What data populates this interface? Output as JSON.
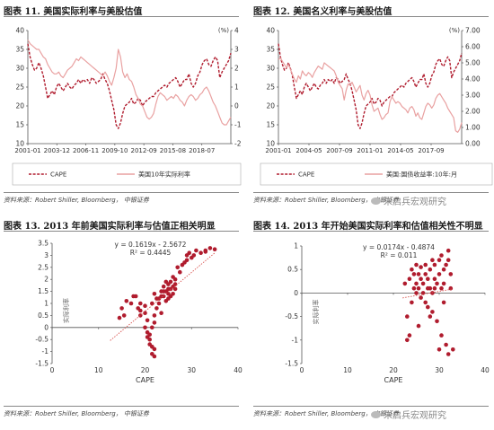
{
  "panels": {
    "p11": {
      "title": "图表 11. 美国实际利率与美股估值",
      "source": "资料来源：Robert Shiller, Bloomberg， 中银证券"
    },
    "p12": {
      "title": "图表 12. 美国名义利率与美股估值",
      "source": "资料来源：Robert Shiller, Bloomberg， 中银证券",
      "watermark": "朱启兵宏观研究"
    },
    "p13": {
      "title": "图表 13. 2013 年前美国实际利率与估值正相关明显",
      "source": "资料来源：Robert Shiller, Bloomberg， 中银证券"
    },
    "p14": {
      "title": "图表 14. 2013 年开始美国实际利率和估值相关性不明显",
      "source": "资料来源：Robert Shiller, Bloomberg， 中银证券",
      "watermark": "朱启兵宏观研究"
    }
  },
  "colors": {
    "cape": "#b01c2e",
    "rate": "#e9a1a1",
    "trend": "#d9534f",
    "axis": "#555555"
  },
  "chart_data": [
    {
      "id": "c11",
      "type": "line",
      "x_ticks": [
        "2001-01",
        "2003-12",
        "2006-11",
        "2009-10",
        "2012-09",
        "2015-08",
        "2018-07"
      ],
      "ylim_left": [
        10,
        40
      ],
      "yticks_left": [
        "10",
        "15",
        "20",
        "25",
        "30",
        "35",
        "40"
      ],
      "ylim_right": [
        -2,
        4
      ],
      "yticks_right": [
        "-2",
        "-1",
        "0",
        "1",
        "2",
        "3",
        "4"
      ],
      "unit_right": "(%)",
      "series": [
        {
          "name": "CAPE",
          "axis": "left",
          "style": "dashed",
          "values": [
            36.5,
            33,
            31,
            29.5,
            30,
            31.5,
            30,
            28,
            25,
            22,
            23,
            24,
            23,
            25,
            26,
            25,
            24,
            25,
            26,
            25,
            24.5,
            25.5,
            26,
            27,
            26,
            27,
            26.5,
            27,
            26,
            27.5,
            27,
            26,
            26.5,
            27,
            28.5,
            27,
            26,
            24,
            21.5,
            19,
            15,
            14,
            15.5,
            18,
            20,
            20.5,
            21,
            22,
            20.5,
            21,
            22,
            21.5,
            20,
            21,
            21.5,
            22,
            22.5,
            22.5,
            23.5,
            24,
            24.5,
            25,
            25.5,
            25,
            26,
            26.5,
            27,
            27.5,
            26.5,
            25,
            26,
            27,
            27,
            28.5,
            26,
            25,
            26,
            28,
            29,
            31,
            32,
            32.5,
            31,
            30.5,
            32,
            33,
            32,
            27.5,
            29,
            30,
            31,
            32,
            34
          ]
        },
        {
          "name": "美国10年实际利率",
          "axis": "right",
          "style": "solid",
          "values": [
            3.5,
            3.3,
            3.2,
            3.1,
            3.0,
            3.0,
            2.8,
            2.6,
            2.5,
            2.2,
            2.0,
            1.8,
            1.7,
            1.7,
            1.8,
            1.6,
            1.5,
            1.7,
            1.9,
            2.0,
            2.1,
            2.3,
            2.5,
            2.4,
            2.6,
            2.5,
            2.4,
            2.3,
            2.2,
            2.1,
            2.0,
            1.9,
            1.8,
            1.7,
            1.6,
            1.8,
            1.6,
            1.3,
            1.1,
            1.5,
            2.0,
            3.0,
            2.6,
            1.8,
            1.5,
            1.7,
            1.4,
            1.3,
            1.0,
            0.6,
            0.4,
            0.1,
            0.0,
            -0.3,
            -0.6,
            -0.7,
            -0.6,
            -0.4,
            0.1,
            0.5,
            0.7,
            0.6,
            0.5,
            0.3,
            0.4,
            0.5,
            0.4,
            0.6,
            0.5,
            0.3,
            0.2,
            0.0,
            0.3,
            0.5,
            0.6,
            0.5,
            0.3,
            0.4,
            0.6,
            0.7,
            0.9,
            1.0,
            0.8,
            0.5,
            0.2,
            0.0,
            -0.3,
            -0.6,
            -0.9,
            -1.0,
            -1.0,
            -0.8,
            -0.6
          ]
        }
      ]
    },
    {
      "id": "c12",
      "type": "line",
      "x_ticks": [
        "2001-01",
        "2004-05",
        "2007-09",
        "2011-01",
        "2014-05",
        "2017-09"
      ],
      "ylim_left": [
        10,
        40
      ],
      "yticks_left": [
        "10",
        "15",
        "20",
        "25",
        "30",
        "35",
        "40"
      ],
      "ylim_right": [
        0,
        7
      ],
      "yticks_right": [
        "0.00",
        "1.00",
        "2.00",
        "3.00",
        "4.00",
        "5.00",
        "6.00",
        "7.00"
      ],
      "unit_right": "(%)",
      "series": [
        {
          "name": "CAPE",
          "axis": "left",
          "style": "dashed",
          "values": [
            36.5,
            33,
            31,
            29.5,
            30,
            31.5,
            30,
            28,
            25,
            22,
            23,
            24,
            23,
            25,
            26,
            25,
            24,
            25,
            26,
            25,
            24.5,
            25.5,
            26,
            27,
            26,
            27,
            26.5,
            27,
            26,
            27.5,
            27,
            26,
            26.5,
            27,
            28.5,
            27,
            26,
            24,
            21.5,
            19,
            15,
            14,
            15.5,
            18,
            20,
            20.5,
            21,
            22,
            20.5,
            21,
            22,
            21.5,
            20,
            21,
            21.5,
            22,
            22.5,
            22.5,
            23.5,
            24,
            24.5,
            25,
            25.5,
            25,
            26,
            26.5,
            27,
            27.5,
            26.5,
            25,
            26,
            27,
            27,
            28.5,
            26,
            25,
            26,
            28,
            29,
            31,
            32,
            32.5,
            31,
            30.5,
            32,
            33,
            32,
            27.5,
            29,
            30,
            31,
            32,
            34
          ]
        },
        {
          "name": "美国:国债收益率:10年:月",
          "axis": "right",
          "style": "solid",
          "values": [
            5.2,
            5.3,
            5.1,
            4.9,
            4.7,
            4.9,
            4.6,
            4.3,
            4.0,
            3.8,
            4.2,
            4.0,
            4.5,
            4.3,
            4.2,
            4.4,
            4.3,
            4.1,
            4.4,
            4.6,
            4.8,
            4.7,
            4.6,
            5.0,
            4.9,
            4.8,
            4.7,
            4.6,
            4.5,
            4.2,
            3.8,
            3.6,
            3.4,
            2.7,
            3.3,
            3.7,
            3.6,
            3.8,
            3.5,
            3.2,
            3.4,
            3.6,
            3.0,
            2.7,
            3.1,
            3.3,
            3.0,
            2.4,
            2.0,
            2.1,
            2.2,
            1.8,
            1.5,
            1.6,
            1.8,
            1.9,
            2.6,
            2.9,
            2.7,
            2.5,
            2.6,
            2.5,
            2.3,
            2.2,
            2.1,
            1.9,
            2.2,
            2.3,
            2.1,
            1.7,
            1.9,
            1.6,
            1.5,
            1.9,
            2.3,
            2.5,
            2.4,
            2.2,
            2.4,
            2.8,
            3.0,
            3.1,
            2.9,
            2.7,
            2.5,
            2.2,
            2.0,
            1.8,
            1.6,
            0.8,
            0.7,
            0.9,
            1.3
          ]
        }
      ]
    },
    {
      "id": "c13",
      "type": "scatter",
      "xlabel": "CAPE",
      "ylabel": "实际利率",
      "xlim": [
        0,
        40
      ],
      "ylim": [
        -1.5,
        3.5
      ],
      "xticks": [
        "0",
        "10",
        "20",
        "30",
        "40"
      ],
      "yticks": [
        "-1.5",
        "-1",
        "-0.5",
        "0",
        "0.5",
        "1",
        "1.5",
        "2",
        "2.5",
        "3",
        "3.5"
      ],
      "equation": "y = 0.1619x - 2.5672",
      "r2": "R² = 0.4445",
      "trend": {
        "slope": 0.1619,
        "intercept": -2.5672,
        "x_range": [
          12.5,
          35
        ]
      },
      "points": [
        [
          14.5,
          0.4
        ],
        [
          15.5,
          0.5
        ],
        [
          15,
          0.8
        ],
        [
          16,
          1.1
        ],
        [
          17.5,
          1.3
        ],
        [
          18,
          1.3
        ],
        [
          19,
          1.0
        ],
        [
          17,
          1.0
        ],
        [
          18.5,
          0.8
        ],
        [
          19,
          0.5
        ],
        [
          19,
          0.7
        ],
        [
          20,
          0.6
        ],
        [
          20,
          0.9
        ],
        [
          20.5,
          0.3
        ],
        [
          20,
          0.0
        ],
        [
          20.5,
          -0.2
        ],
        [
          20.5,
          -0.4
        ],
        [
          21,
          -0.7
        ],
        [
          21,
          -0.5
        ],
        [
          21.5,
          -0.8
        ],
        [
          21.5,
          -1.1
        ],
        [
          22,
          -0.9
        ],
        [
          22,
          -1.2
        ],
        [
          21,
          -0.3
        ],
        [
          21.5,
          0.0
        ],
        [
          22,
          0.2
        ],
        [
          22,
          0.5
        ],
        [
          22.5,
          0.8
        ],
        [
          21.5,
          1.0
        ],
        [
          22,
          1.4
        ],
        [
          22.5,
          1.2
        ],
        [
          23,
          1.0
        ],
        [
          23,
          1.2
        ],
        [
          23.5,
          0.6
        ],
        [
          23.5,
          1.5
        ],
        [
          24,
          1.3
        ],
        [
          24,
          1.7
        ],
        [
          24.5,
          1.1
        ],
        [
          24.5,
          1.5
        ],
        [
          25,
          1.2
        ],
        [
          25,
          1.8
        ],
        [
          25.5,
          1.6
        ],
        [
          25.5,
          1.9
        ],
        [
          26,
          1.7
        ],
        [
          26,
          1.4
        ],
        [
          26.5,
          2.0
        ],
        [
          26.5,
          1.6
        ],
        [
          25,
          1.4
        ],
        [
          24.5,
          1.9
        ],
        [
          25.5,
          1.3
        ],
        [
          26,
          2.1
        ],
        [
          26.5,
          1.8
        ],
        [
          25,
          1.6
        ],
        [
          24,
          1.5
        ],
        [
          23.5,
          1.3
        ],
        [
          27,
          2.5
        ],
        [
          27.5,
          2.3
        ],
        [
          28,
          2.6
        ],
        [
          28.5,
          2.7
        ],
        [
          29,
          2.8
        ],
        [
          29.5,
          3.1
        ],
        [
          30,
          2.9
        ],
        [
          31,
          3.2
        ],
        [
          32,
          3.1
        ],
        [
          33,
          3.2
        ],
        [
          34,
          3.3
        ],
        [
          35,
          3.25
        ],
        [
          29,
          3.0
        ],
        [
          30.5,
          3.0
        ],
        [
          33,
          3.15
        ]
      ]
    },
    {
      "id": "c14",
      "type": "scatter",
      "xlabel": "CAPE",
      "ylabel": "实际利率",
      "xlim": [
        0,
        40
      ],
      "ylim": [
        -1.5,
        1.0
      ],
      "xticks": [
        "0",
        "10",
        "20",
        "30",
        "40"
      ],
      "yticks": [
        "-1.5",
        "-1",
        "-0.5",
        "0",
        "0.5",
        "1"
      ],
      "equation": "y = 0.0174x - 0.4874",
      "r2": "R² = 0.011",
      "trend": {
        "slope": 0.0174,
        "intercept": -0.4874,
        "x_range": [
          22,
          33
        ]
      },
      "points": [
        [
          22.5,
          0.2
        ],
        [
          23,
          -0.5
        ],
        [
          23,
          -1.0
        ],
        [
          23.5,
          0.3
        ],
        [
          24,
          0.5
        ],
        [
          24.5,
          0.4
        ],
        [
          25,
          0.2
        ],
        [
          25,
          0.0
        ],
        [
          25.5,
          0.1
        ],
        [
          25.5,
          0.4
        ],
        [
          26,
          0.3
        ],
        [
          26,
          -0.1
        ],
        [
          26.5,
          0.2
        ],
        [
          26.5,
          0.0
        ],
        [
          27,
          -0.2
        ],
        [
          27,
          0.4
        ],
        [
          27.5,
          0.3
        ],
        [
          27.5,
          -0.3
        ],
        [
          28,
          0.5
        ],
        [
          28,
          0.1
        ],
        [
          28.5,
          0.0
        ],
        [
          28.5,
          -0.4
        ],
        [
          29,
          0.3
        ],
        [
          29,
          0.6
        ],
        [
          29.5,
          0.2
        ],
        [
          29.5,
          -0.6
        ],
        [
          30,
          0.7
        ],
        [
          30,
          0.4
        ],
        [
          30.5,
          0.8
        ],
        [
          30.5,
          -0.9
        ],
        [
          31,
          0.5
        ],
        [
          31,
          0.2
        ],
        [
          31.5,
          0.6
        ],
        [
          31.5,
          -1.1
        ],
        [
          32,
          0.9
        ],
        [
          32,
          0.7
        ],
        [
          32.5,
          0.1
        ],
        [
          32,
          -1.3
        ],
        [
          33,
          -1.2
        ],
        [
          30,
          -1.2
        ],
        [
          24,
          -0.2
        ],
        [
          25.5,
          -0.7
        ],
        [
          27,
          0.6
        ],
        [
          28,
          -0.5
        ],
        [
          29,
          0.1
        ],
        [
          26,
          0.55
        ],
        [
          24.5,
          0.1
        ],
        [
          23.5,
          -0.9
        ],
        [
          31,
          -0.2
        ],
        [
          32.5,
          0.4
        ],
        [
          30.5,
          0.1
        ],
        [
          28.5,
          0.7
        ],
        [
          27.5,
          0.1
        ],
        [
          25,
          0.6
        ]
      ]
    }
  ]
}
